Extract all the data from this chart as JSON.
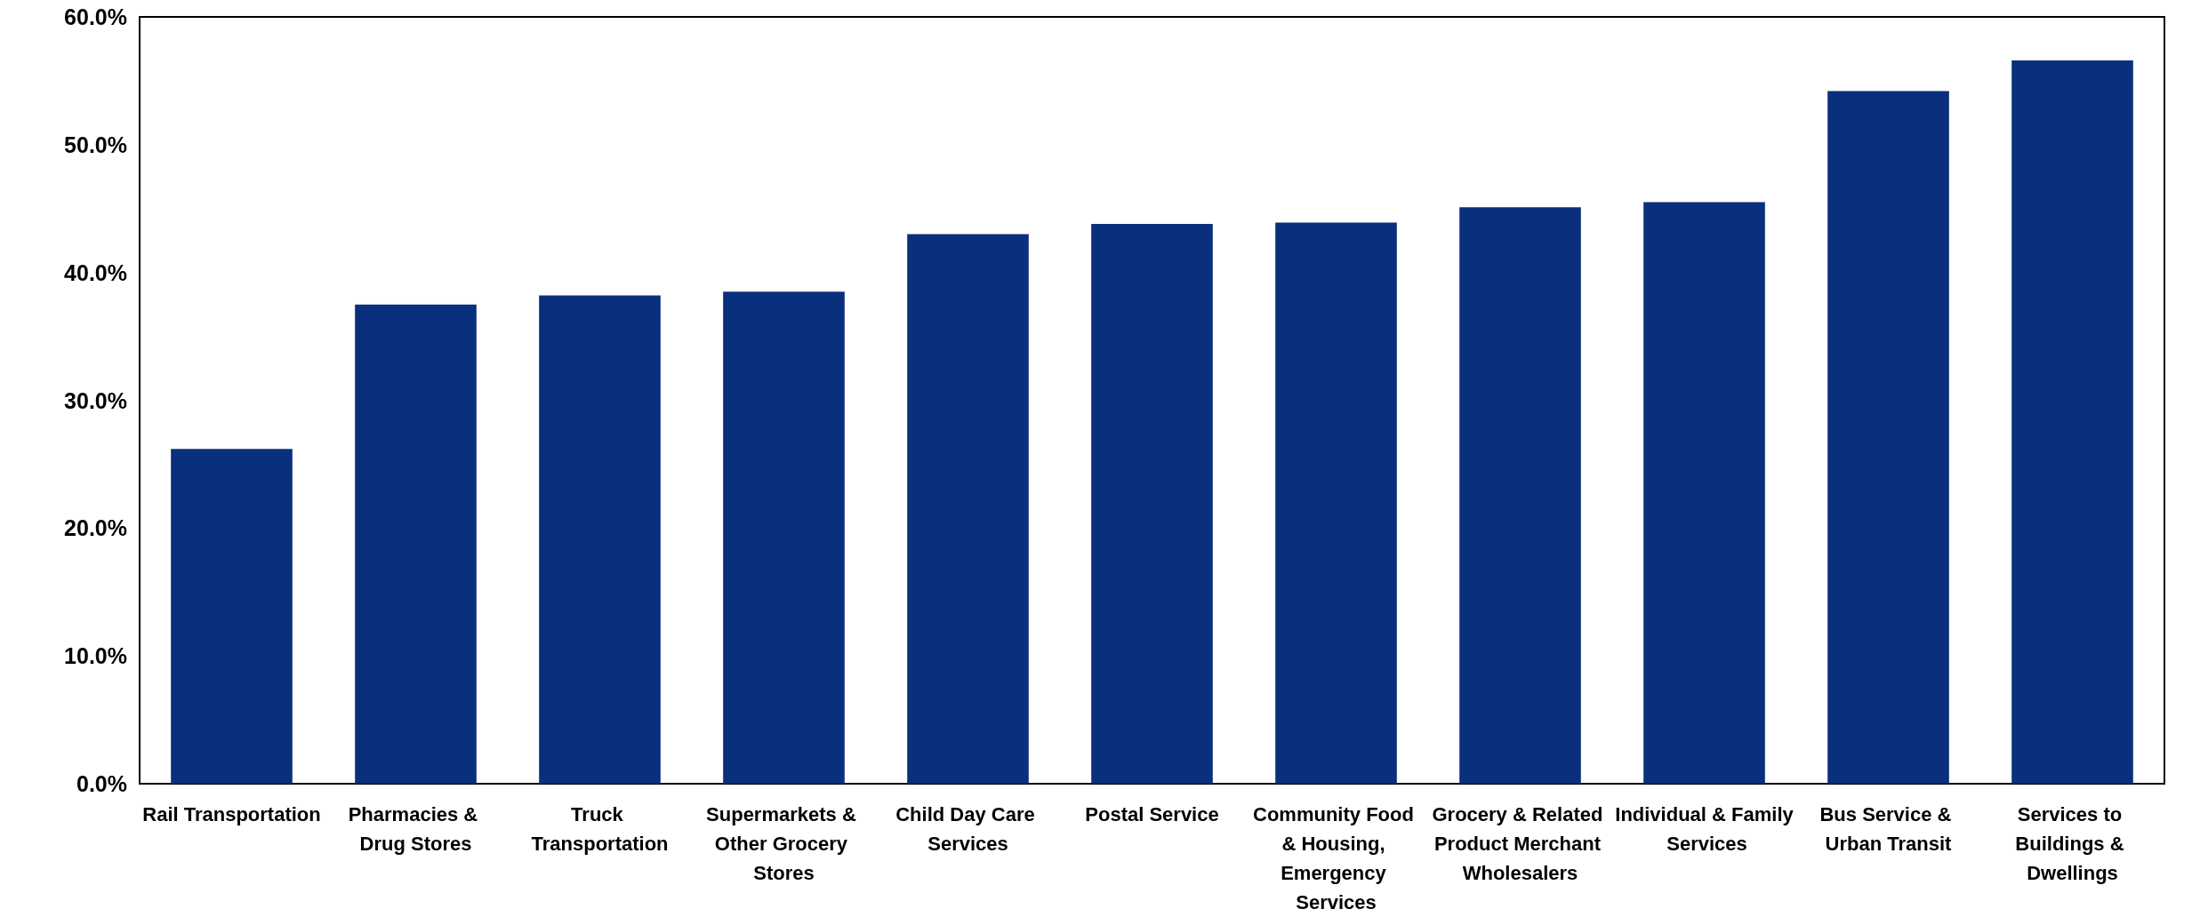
{
  "chart_data": {
    "type": "bar",
    "categories": [
      "Rail Transportation",
      "Pharmacies & Drug Stores",
      "Truck Transportation",
      "Supermarkets & Other Grocery Stores",
      "Child Day Care Services",
      "Postal Service",
      "Community Food & Housing, Emergency Services",
      "Grocery & Related Product Merchant Wholesalers",
      "Individual & Family Services",
      "Bus Service & Urban Transit",
      "Services to Buildings & Dwellings"
    ],
    "values": [
      26.2,
      37.5,
      38.2,
      38.5,
      43.0,
      43.8,
      43.9,
      45.1,
      45.5,
      54.2,
      56.6
    ],
    "color": "#0a2f7c",
    "ylim": [
      0,
      60
    ],
    "yticks": [
      {
        "value": 0,
        "label": "0.0%"
      },
      {
        "value": 10,
        "label": "10.0%"
      },
      {
        "value": 20,
        "label": "20.0%"
      },
      {
        "value": 30,
        "label": "30.0%"
      },
      {
        "value": 40,
        "label": "40.0%"
      },
      {
        "value": 50,
        "label": "50.0%"
      },
      {
        "value": 60,
        "label": "60.0%"
      }
    ],
    "grid": false
  }
}
